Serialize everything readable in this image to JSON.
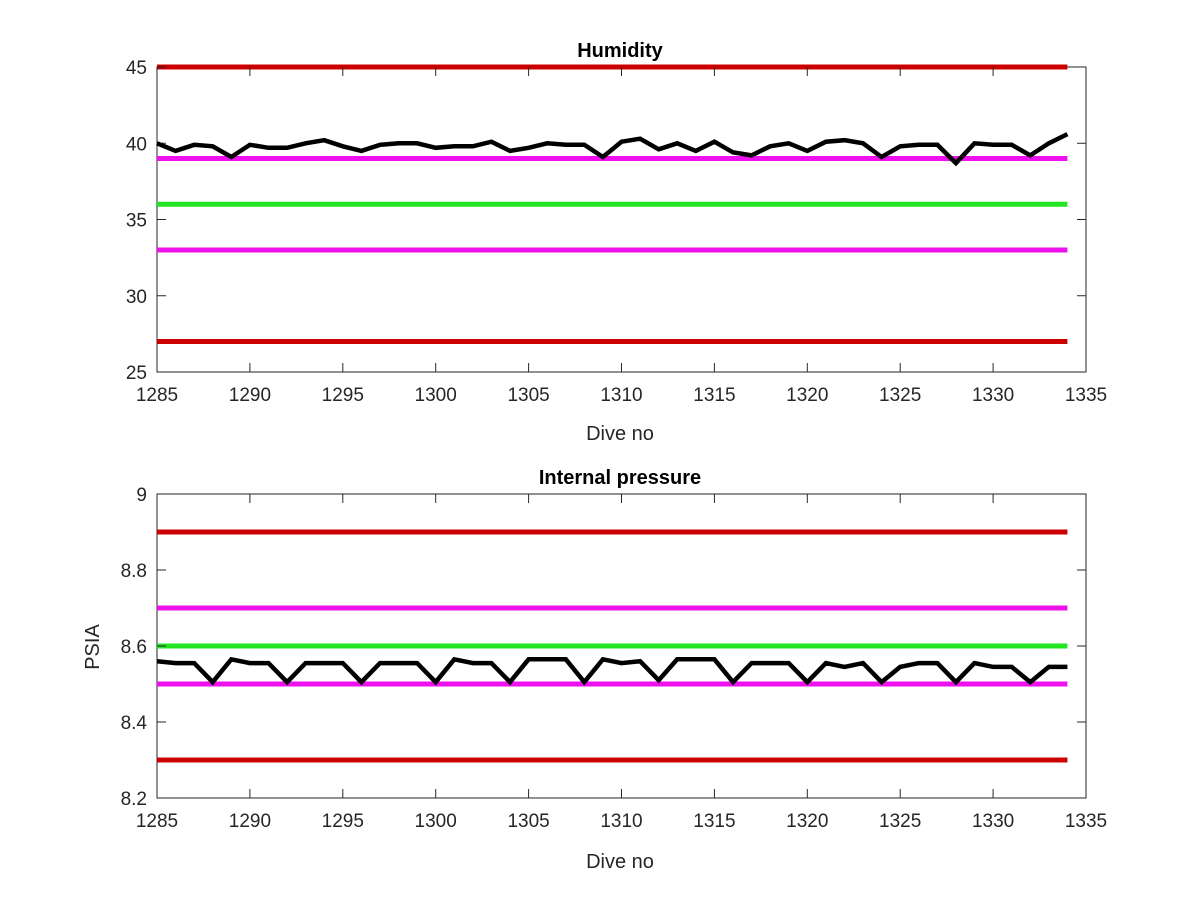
{
  "chart_data": [
    {
      "type": "line",
      "title": "Humidity",
      "xlabel": "Dive no",
      "ylabel": "",
      "xlim": [
        1285,
        1335
      ],
      "ylim": [
        25,
        45
      ],
      "xticks": [
        1285,
        1290,
        1295,
        1300,
        1305,
        1310,
        1315,
        1320,
        1325,
        1330,
        1335
      ],
      "yticks": [
        25,
        30,
        35,
        40,
        45
      ],
      "grid": false,
      "threshold_lines": [
        {
          "value": 45,
          "color": "#cc0000"
        },
        {
          "value": 39,
          "color": "#ee11ee"
        },
        {
          "value": 36,
          "color": "#22e622"
        },
        {
          "value": 33,
          "color": "#ee11ee"
        },
        {
          "value": 27,
          "color": "#cc0000"
        }
      ],
      "series": [
        {
          "color": "#000000",
          "x": [
            1285,
            1286,
            1287,
            1288,
            1289,
            1290,
            1291,
            1292,
            1293,
            1294,
            1295,
            1296,
            1297,
            1298,
            1299,
            1300,
            1301,
            1302,
            1303,
            1304,
            1305,
            1306,
            1307,
            1308,
            1309,
            1310,
            1311,
            1312,
            1313,
            1314,
            1315,
            1316,
            1317,
            1318,
            1319,
            1320,
            1321,
            1322,
            1323,
            1324,
            1325,
            1326,
            1327,
            1328,
            1329,
            1330,
            1331,
            1332,
            1333,
            1334
          ],
          "y": [
            40.0,
            39.5,
            39.9,
            39.8,
            39.1,
            39.9,
            39.7,
            39.7,
            40.0,
            40.2,
            39.8,
            39.5,
            39.9,
            40.0,
            40.0,
            39.7,
            39.8,
            39.8,
            40.1,
            39.5,
            39.7,
            40.0,
            39.9,
            39.9,
            39.1,
            40.1,
            40.3,
            39.6,
            40.0,
            39.5,
            40.1,
            39.4,
            39.2,
            39.8,
            40.0,
            39.5,
            40.1,
            40.2,
            40.0,
            39.1,
            39.8,
            39.9,
            39.9,
            38.7,
            40.0,
            39.9,
            39.9,
            39.2,
            40.0,
            40.6
          ]
        }
      ]
    },
    {
      "type": "line",
      "title": "Internal pressure",
      "xlabel": "Dive no",
      "ylabel": "PSIA",
      "xlim": [
        1285,
        1335
      ],
      "ylim": [
        8.2,
        9
      ],
      "xticks": [
        1285,
        1290,
        1295,
        1300,
        1305,
        1310,
        1315,
        1320,
        1325,
        1330,
        1335
      ],
      "yticks": [
        8.2,
        8.4,
        8.6,
        8.8,
        9
      ],
      "grid": false,
      "threshold_lines": [
        {
          "value": 8.9,
          "color": "#cc0000"
        },
        {
          "value": 8.7,
          "color": "#ee11ee"
        },
        {
          "value": 8.6,
          "color": "#22e622"
        },
        {
          "value": 8.5,
          "color": "#ee11ee"
        },
        {
          "value": 8.3,
          "color": "#cc0000"
        }
      ],
      "series": [
        {
          "color": "#000000",
          "x": [
            1285,
            1286,
            1287,
            1288,
            1289,
            1290,
            1291,
            1292,
            1293,
            1294,
            1295,
            1296,
            1297,
            1298,
            1299,
            1300,
            1301,
            1302,
            1303,
            1304,
            1305,
            1306,
            1307,
            1308,
            1309,
            1310,
            1311,
            1312,
            1313,
            1314,
            1315,
            1316,
            1317,
            1318,
            1319,
            1320,
            1321,
            1322,
            1323,
            1324,
            1325,
            1326,
            1327,
            1328,
            1329,
            1330,
            1331,
            1332,
            1333,
            1334
          ],
          "y": [
            8.56,
            8.555,
            8.555,
            8.505,
            8.565,
            8.555,
            8.555,
            8.505,
            8.555,
            8.555,
            8.555,
            8.505,
            8.555,
            8.555,
            8.555,
            8.505,
            8.565,
            8.555,
            8.555,
            8.505,
            8.565,
            8.565,
            8.565,
            8.505,
            8.565,
            8.555,
            8.56,
            8.51,
            8.565,
            8.565,
            8.565,
            8.505,
            8.555,
            8.555,
            8.555,
            8.505,
            8.555,
            8.545,
            8.555,
            8.505,
            8.545,
            8.555,
            8.555,
            8.505,
            8.555,
            8.545,
            8.545,
            8.505,
            8.545,
            8.545
          ]
        }
      ]
    }
  ]
}
